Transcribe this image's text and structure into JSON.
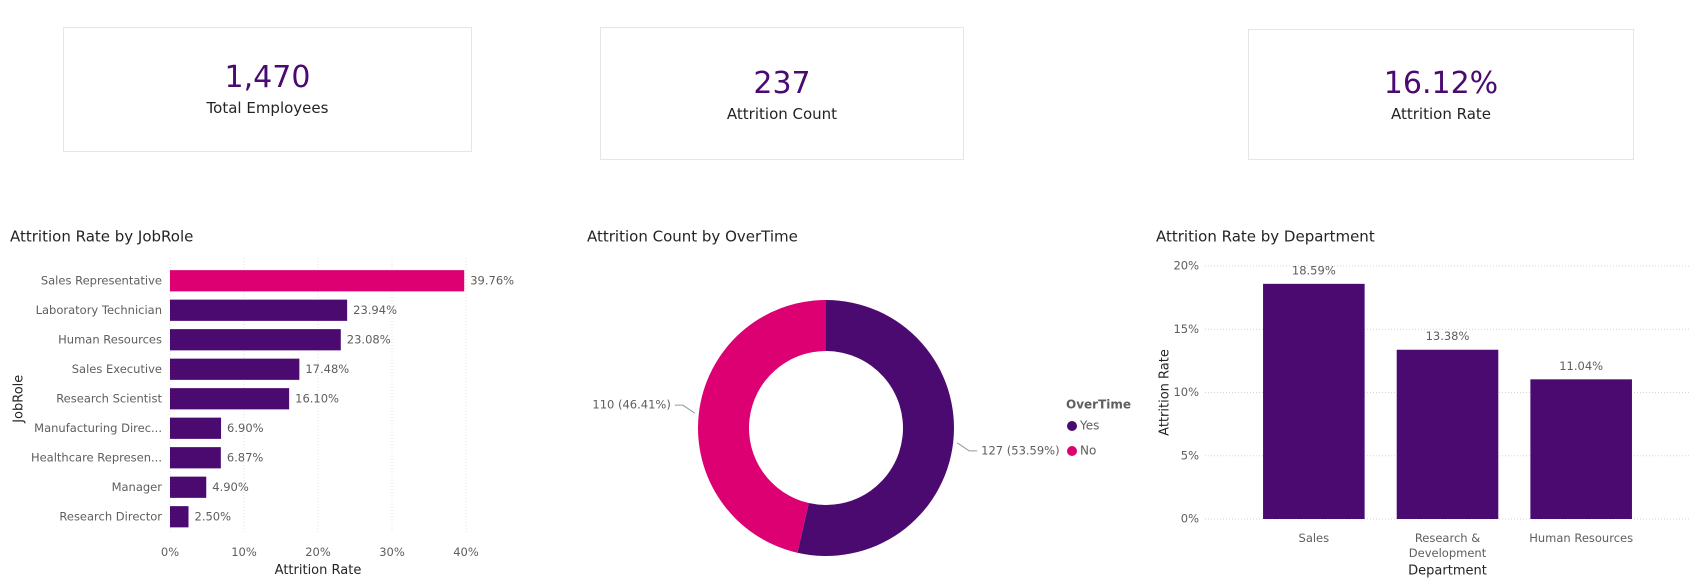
{
  "kpis": [
    {
      "value": "1,470",
      "label": "Total Employees"
    },
    {
      "value": "237",
      "label": "Attrition Count"
    },
    {
      "value": "16.12%",
      "label": "Attrition Rate"
    }
  ],
  "chart_data": [
    {
      "type": "bar",
      "horizontal": true,
      "title": "Attrition Rate by JobRole",
      "x_label": "Attrition Rate",
      "y_label": "JobRole",
      "color": "#4b0a70",
      "highlight_color": "#dc0073",
      "highlight_index": 0,
      "categories": [
        "Sales Representative",
        "Laboratory Technician",
        "Human Resources",
        "Sales Executive",
        "Research Scientist",
        "Manufacturing Direc...",
        "Healthcare Represen...",
        "Manager",
        "Research Director"
      ],
      "values": [
        39.76,
        23.94,
        23.08,
        17.48,
        16.1,
        6.9,
        6.87,
        4.9,
        2.5
      ],
      "value_labels": [
        "39.76%",
        "23.94%",
        "23.08%",
        "17.48%",
        "16.10%",
        "6.90%",
        "6.87%",
        "4.90%",
        "2.50%"
      ],
      "xlim": [
        0,
        40
      ],
      "xticks": [
        {
          "value": 0,
          "label": "0%"
        },
        {
          "value": 10,
          "label": "10%"
        },
        {
          "value": 20,
          "label": "20%"
        },
        {
          "value": 30,
          "label": "30%"
        },
        {
          "value": 40,
          "label": "40%"
        }
      ],
      "grid": true
    },
    {
      "type": "donut",
      "title": "Attrition Count by OverTime",
      "legend_title": "OverTime",
      "categories": [
        "Yes",
        "No"
      ],
      "values": [
        127,
        110
      ],
      "value_labels": [
        "127 (53.59%)",
        "110 (46.41%)"
      ],
      "colors": [
        "#4b0a70",
        "#dc0073"
      ]
    },
    {
      "type": "bar",
      "horizontal": false,
      "title": "Attrition Rate by Department",
      "x_label": "Department",
      "y_label": "Attrition Rate",
      "color": "#4b0a70",
      "categories": [
        "Sales",
        "Research & Development",
        "Human Resources"
      ],
      "values": [
        18.59,
        13.38,
        11.04
      ],
      "value_labels": [
        "18.59%",
        "13.38%",
        "11.04%"
      ],
      "ylim": [
        0,
        20
      ],
      "yticks": [
        {
          "value": 0,
          "label": "0%"
        },
        {
          "value": 5,
          "label": "5%"
        },
        {
          "value": 10,
          "label": "10%"
        },
        {
          "value": 15,
          "label": "15%"
        },
        {
          "value": 20,
          "label": "20%"
        }
      ],
      "grid": true
    }
  ]
}
